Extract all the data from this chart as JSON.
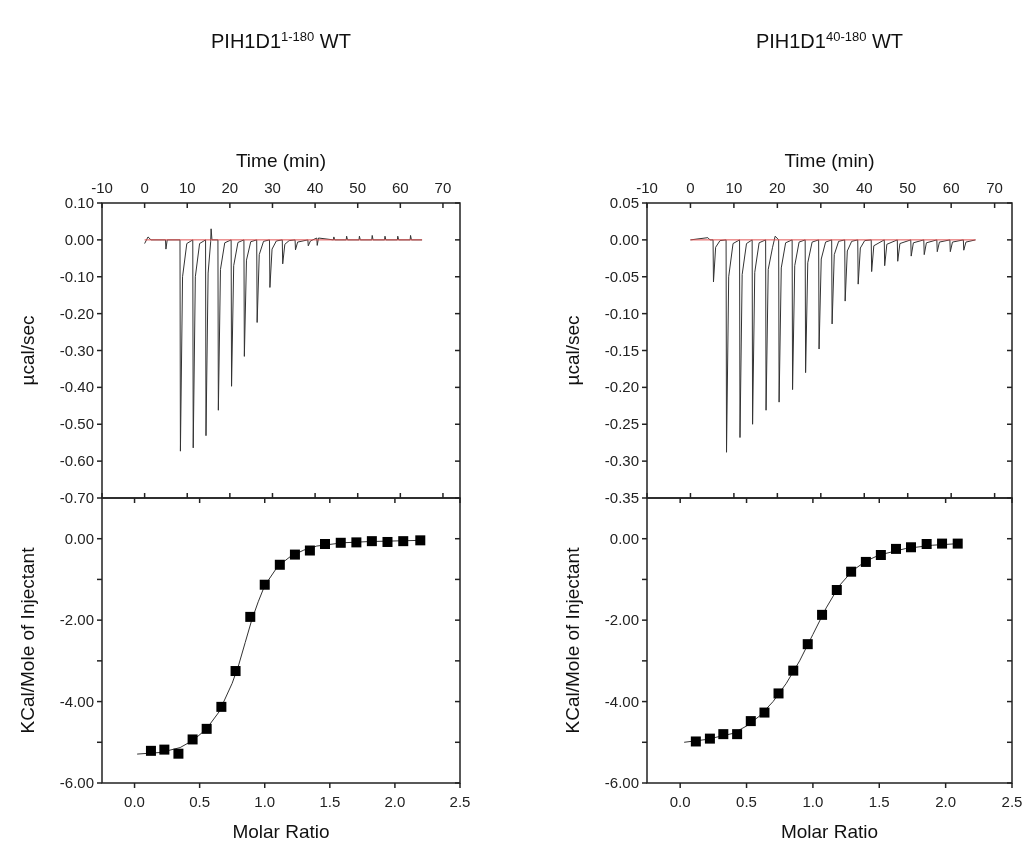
{
  "chart_data": [
    {
      "type": "line",
      "title": "PIH1D1$^{1-180}$ WT",
      "xlabel": "Time (min)",
      "ylabel": "µcal/sec",
      "xlim": [
        -10,
        74
      ],
      "xticks": [
        -10,
        0,
        10,
        20,
        30,
        40,
        50,
        60,
        70
      ],
      "ylim": [
        -0.7,
        0.1
      ],
      "yticks": [
        {
          "value": 0.1,
          "label": "0.10"
        },
        {
          "value": 0,
          "label": "0.00"
        },
        {
          "value": -0.1,
          "label": "-0.10"
        },
        {
          "value": -0.2,
          "label": "-0.20"
        },
        {
          "value": -0.3,
          "label": "-0.30"
        },
        {
          "value": -0.4,
          "label": "-0.40"
        },
        {
          "value": -0.5,
          "label": "-0.50"
        },
        {
          "value": -0.6,
          "label": "-0.60"
        },
        {
          "value": -0.7,
          "label": "-0.70"
        }
      ],
      "grid": false,
      "series": [
        {
          "color": "#333333",
          "x": [
            0,
            0.8,
            1.5,
            4.9,
            5.0,
            5.3,
            8.3,
            8.4,
            8.9,
            9.9,
            11.3,
            11.4,
            11.9,
            12.9,
            14.3,
            14.4,
            14.9,
            15.5,
            15.6,
            15.8,
            17.2,
            17.3,
            17.8,
            18.8,
            20.3,
            20.4,
            20.9,
            21.9,
            23.3,
            23.4,
            23.9,
            24.9,
            26.3,
            26.4,
            26.9,
            27.9,
            29.3,
            29.4,
            29.9,
            30.9,
            32.3,
            32.4,
            32.9,
            33.9,
            35.3,
            35.4,
            35.9,
            38.3,
            38.4,
            38.9,
            40.4,
            40.5,
            40.8,
            44.3,
            44.4,
            44.6,
            47.3,
            47.4,
            47.6,
            50.3,
            50.4,
            50.6,
            53.3,
            53.4,
            53.6,
            56.3,
            56.4,
            56.6,
            59.3,
            59.4,
            59.6,
            62.3,
            62.4,
            62.6,
            65.1
          ],
          "values": [
            -0.01,
            0.008,
            0,
            0,
            -0.025,
            0,
            0,
            -0.573,
            -0.1,
            -0.01,
            0,
            -0.564,
            -0.1,
            -0.01,
            0,
            -0.531,
            -0.09,
            -0.005,
            0.03,
            0,
            0,
            -0.462,
            -0.08,
            -0.008,
            0,
            -0.397,
            -0.07,
            -0.007,
            0,
            -0.316,
            -0.055,
            -0.005,
            0,
            -0.224,
            -0.04,
            -0.004,
            0,
            -0.129,
            -0.025,
            -0.003,
            0,
            -0.065,
            -0.012,
            -0.002,
            0,
            -0.027,
            -0.006,
            0,
            -0.016,
            -0.003,
            0.005,
            -0.015,
            0.005,
            0,
            0.008,
            0,
            0,
            0.01,
            0,
            0,
            0.01,
            0,
            0,
            0.012,
            0,
            0,
            0.01,
            0,
            0,
            0.01,
            0,
            0,
            0.012,
            0,
            0
          ]
        },
        {
          "color": "#e05050",
          "x": [
            0,
            65.1
          ],
          "values": [
            0,
            0
          ]
        }
      ]
    },
    {
      "type": "line",
      "title": "PIH1D1$^{40-180}$ WT",
      "xlabel": "Time (min)",
      "ylabel": "µcal/sec",
      "xlim": [
        -10,
        74
      ],
      "xticks": [
        -10,
        0,
        10,
        20,
        30,
        40,
        50,
        60,
        70
      ],
      "ylim": [
        -0.35,
        0.05
      ],
      "yticks": [
        {
          "value": 0.05,
          "label": "0.05"
        },
        {
          "value": 0,
          "label": "0.00"
        },
        {
          "value": -0.05,
          "label": "-0.05"
        },
        {
          "value": -0.1,
          "label": "-0.10"
        },
        {
          "value": -0.15,
          "label": "-0.15"
        },
        {
          "value": -0.2,
          "label": "-0.20"
        },
        {
          "value": -0.25,
          "label": "-0.25"
        },
        {
          "value": -0.3,
          "label": "-0.30"
        },
        {
          "value": -0.35,
          "label": "-0.35"
        }
      ],
      "grid": false,
      "series": [
        {
          "color": "#333333",
          "x": [
            0,
            4.0,
            4.5,
            5.2,
            5.3,
            5.8,
            6.8,
            8.2,
            8.3,
            8.8,
            9.8,
            11.3,
            11.4,
            11.9,
            12.9,
            14.2,
            14.3,
            14.8,
            15.8,
            17.3,
            17.4,
            17.9,
            18.9,
            19.5,
            20.3,
            20.4,
            20.9,
            21.9,
            23.4,
            23.5,
            24.0,
            25.0,
            26.4,
            26.5,
            27.0,
            28.0,
            29.5,
            29.6,
            30.1,
            31.1,
            32.5,
            32.6,
            33.1,
            34.1,
            35.5,
            35.6,
            36.1,
            37.1,
            38.5,
            38.6,
            39.1,
            40.1,
            41.6,
            41.7,
            42.2,
            44.6,
            44.7,
            45.2,
            47.6,
            47.7,
            48.2,
            50.7,
            50.8,
            51.3,
            53.7,
            53.8,
            54.3,
            56.7,
            56.8,
            57.3,
            59.7,
            59.8,
            60.3,
            62.8,
            62.9,
            63.4,
            65.6
          ],
          "values": [
            0,
            0.003,
            0,
            0,
            -0.057,
            -0.01,
            -0.001,
            0,
            -0.288,
            -0.05,
            -0.005,
            0,
            -0.268,
            -0.047,
            -0.005,
            0,
            -0.25,
            -0.044,
            -0.004,
            0,
            -0.231,
            -0.04,
            -0.01,
            0.005,
            0,
            -0.22,
            -0.038,
            -0.004,
            0,
            -0.203,
            -0.035,
            -0.003,
            0,
            -0.18,
            -0.031,
            -0.003,
            0,
            -0.148,
            -0.026,
            -0.003,
            0,
            -0.114,
            -0.02,
            -0.002,
            0,
            -0.083,
            -0.015,
            -0.002,
            0,
            -0.06,
            -0.011,
            -0.001,
            0,
            -0.043,
            -0.008,
            0,
            -0.035,
            -0.006,
            0,
            -0.029,
            -0.005,
            0,
            -0.022,
            -0.004,
            0,
            -0.02,
            -0.004,
            0,
            -0.016,
            -0.003,
            0,
            -0.016,
            -0.003,
            0,
            -0.014,
            -0.003,
            0
          ]
        },
        {
          "color": "#e05050",
          "x": [
            0,
            65.6
          ],
          "values": [
            0,
            0
          ]
        }
      ]
    },
    {
      "type": "scatter",
      "xlabel": "Molar Ratio",
      "ylabel": "KCal/Mole of Injectant",
      "xlim": [
        -0.25,
        2.5
      ],
      "xticks": [
        {
          "value": 0,
          "label": "0.0"
        },
        {
          "value": 0.5,
          "label": "0.5"
        },
        {
          "value": 1,
          "label": "1.0"
        },
        {
          "value": 1.5,
          "label": "1.5"
        },
        {
          "value": 2,
          "label": "2.0"
        },
        {
          "value": 2.5,
          "label": "2.5"
        }
      ],
      "ylim": [
        -6,
        1
      ],
      "yticks": [
        {
          "value": 0,
          "label": "0.00"
        },
        {
          "value": -1,
          "label": null
        },
        {
          "value": -2,
          "label": "-2.00"
        },
        {
          "value": -3,
          "label": null
        },
        {
          "value": -4,
          "label": "-4.00"
        },
        {
          "value": -5,
          "label": null
        },
        {
          "value": -6,
          "label": "-6.00"
        }
      ],
      "grid": false,
      "series": [
        {
          "type": "line",
          "color": "#333333",
          "marker": "none",
          "x": [
            0.02,
            0.2,
            0.35,
            0.45,
            0.55,
            0.65,
            0.75,
            0.8,
            0.85,
            0.9,
            0.95,
            1.0,
            1.1,
            1.2,
            1.3,
            1.4,
            1.6,
            1.8,
            2.2
          ],
          "values": [
            -5.29,
            -5.25,
            -5.13,
            -4.95,
            -4.68,
            -4.25,
            -3.55,
            -3.1,
            -2.55,
            -2.0,
            -1.55,
            -1.15,
            -0.68,
            -0.43,
            -0.28,
            -0.18,
            -0.1,
            -0.07,
            -0.04
          ]
        },
        {
          "color": "#000000",
          "marker": "square",
          "x": [
            0.126,
            0.229,
            0.337,
            0.446,
            0.554,
            0.667,
            0.776,
            0.889,
            1.0,
            1.116,
            1.232,
            1.347,
            1.463,
            1.584,
            1.704,
            1.823,
            1.943,
            2.064,
            2.195
          ],
          "values": [
            -5.21,
            -5.18,
            -5.28,
            -4.93,
            -4.67,
            -4.13,
            -3.25,
            -1.92,
            -1.13,
            -0.64,
            -0.39,
            -0.29,
            -0.13,
            -0.1,
            -0.09,
            -0.06,
            -0.08,
            -0.06,
            -0.04
          ]
        }
      ]
    },
    {
      "type": "scatter",
      "xlabel": "Molar Ratio",
      "ylabel": "KCal/Mole of Injectant",
      "xlim": [
        -0.25,
        2.5
      ],
      "xticks": [
        {
          "value": 0,
          "label": "0.0"
        },
        {
          "value": 0.5,
          "label": "0.5"
        },
        {
          "value": 1,
          "label": "1.0"
        },
        {
          "value": 1.5,
          "label": "1.5"
        },
        {
          "value": 2,
          "label": "2.0"
        },
        {
          "value": 2.5,
          "label": "2.5"
        }
      ],
      "ylim": [
        -6,
        1
      ],
      "yticks": [
        {
          "value": 0,
          "label": "0.00"
        },
        {
          "value": -1,
          "label": null
        },
        {
          "value": -2,
          "label": "-2.00"
        },
        {
          "value": -3,
          "label": null
        },
        {
          "value": -4,
          "label": "-4.00"
        },
        {
          "value": -5,
          "label": null
        },
        {
          "value": -6,
          "label": "-6.00"
        }
      ],
      "grid": false,
      "series": [
        {
          "type": "line",
          "color": "#333333",
          "marker": "none",
          "x": [
            0.03,
            0.2,
            0.4,
            0.5,
            0.6,
            0.7,
            0.8,
            0.9,
            1.0,
            1.1,
            1.2,
            1.3,
            1.4,
            1.5,
            1.7,
            1.9,
            2.1
          ],
          "values": [
            -5.0,
            -4.93,
            -4.78,
            -4.6,
            -4.35,
            -4.0,
            -3.55,
            -3.0,
            -2.35,
            -1.7,
            -1.15,
            -0.78,
            -0.55,
            -0.4,
            -0.24,
            -0.16,
            -0.12
          ]
        },
        {
          "color": "#000000",
          "marker": "square",
          "x": [
            0.118,
            0.224,
            0.325,
            0.429,
            0.532,
            0.635,
            0.741,
            0.852,
            0.961,
            1.069,
            1.18,
            1.288,
            1.399,
            1.512,
            1.626,
            1.739,
            1.857,
            1.973,
            2.091
          ],
          "values": [
            -4.98,
            -4.91,
            -4.8,
            -4.8,
            -4.48,
            -4.27,
            -3.8,
            -3.24,
            -2.59,
            -1.87,
            -1.26,
            -0.81,
            -0.57,
            -0.4,
            -0.25,
            -0.21,
            -0.13,
            -0.12,
            -0.12
          ]
        }
      ]
    }
  ]
}
